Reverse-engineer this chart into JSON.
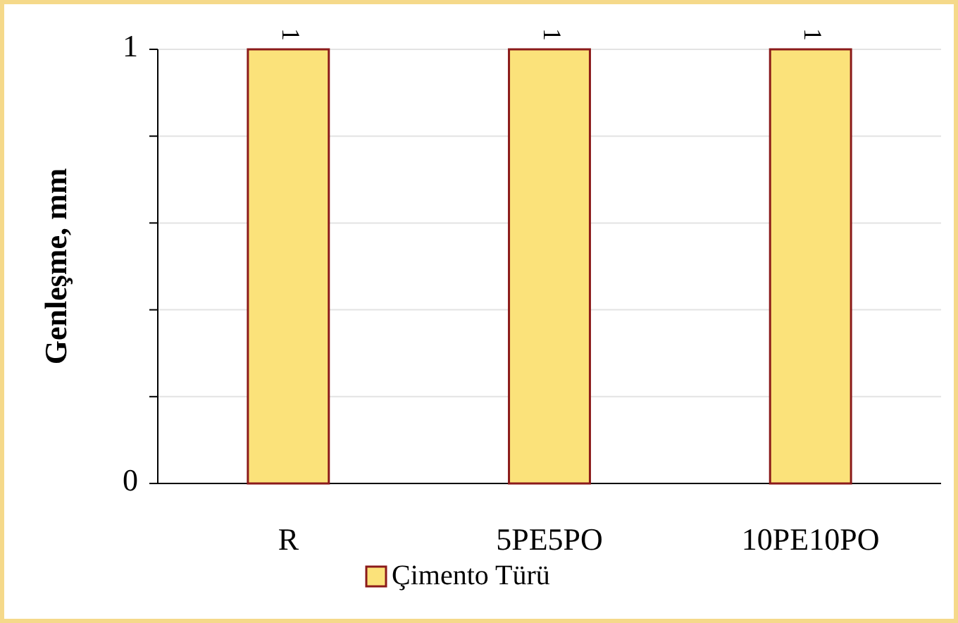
{
  "chart_data": {
    "type": "bar",
    "ylabel": "Genleşme, mm",
    "categories": [
      "R",
      "5PE5PO",
      "10PE10PO"
    ],
    "series": [
      {
        "name": "Çimento Türü",
        "color": "#fbe27a",
        "values": [
          1,
          1,
          1
        ]
      }
    ],
    "ylim": [
      0,
      1
    ],
    "yticks": [
      0,
      {
        "value": 0.2,
        "label": null
      },
      {
        "value": 0.4,
        "label": null
      },
      {
        "value": 0.6,
        "label": null
      },
      {
        "value": 0.8,
        "label": null
      },
      1
    ],
    "grid": "y",
    "data_labels": true,
    "legend": "bottom"
  }
}
